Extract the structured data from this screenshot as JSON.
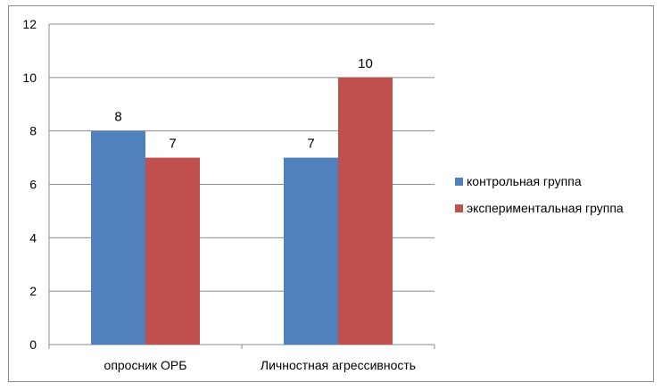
{
  "chart_data": {
    "type": "bar",
    "categories": [
      "опросник ОРБ",
      "Личностная агрессивность"
    ],
    "series": [
      {
        "name": "контрольная группа",
        "values": [
          8,
          7
        ],
        "color": "#4f81bd"
      },
      {
        "name": "экспериментальная группа",
        "values": [
          7,
          10
        ],
        "color": "#c0504d"
      }
    ],
    "ylim": [
      0,
      12
    ],
    "yticks": [
      "0",
      "2",
      "4",
      "6",
      "8",
      "10",
      "12"
    ],
    "grid": true,
    "legend": "right",
    "data_labels": true
  }
}
